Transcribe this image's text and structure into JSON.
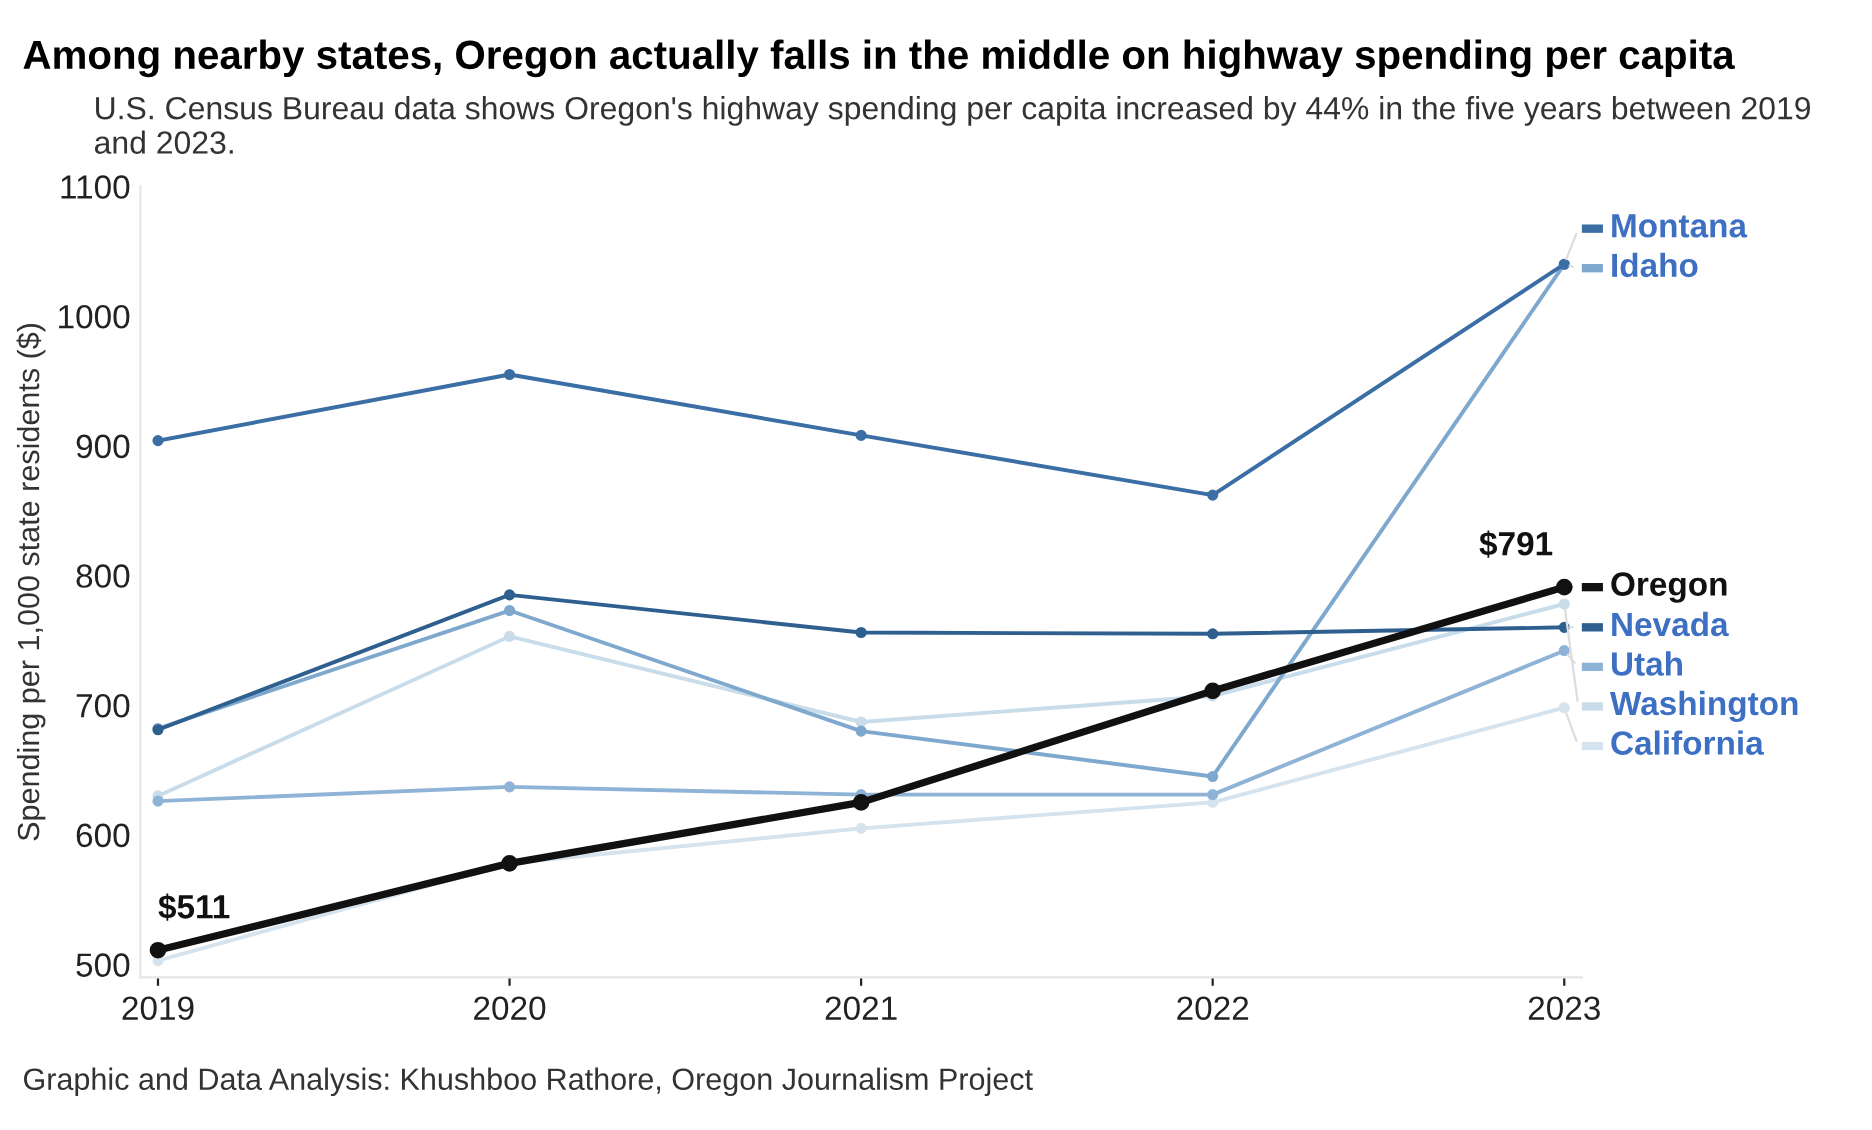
{
  "chart_data": {
    "type": "line",
    "title": "Among nearby states, Oregon actually falls in the middle on highway spending per capita",
    "subtitle": "U.S. Census Bureau data shows Oregon's highway spending per capita increased by 44% in the five years between 2019 and 2023.",
    "ylabel": "Spending per 1,000 state residents ($)",
    "annotations": [
      "Graphic and Data Analysis: Khushboo Rathore, Oregon Journalism Project"
    ],
    "categories": [
      "2019",
      "2020",
      "2021",
      "2022",
      "2023"
    ],
    "series": [
      {
        "name": "Montana",
        "color": "#3a6ea5",
        "values": [
          904,
          955,
          908,
          862,
          1040
        ]
      },
      {
        "name": "Idaho",
        "color": "#7fa8cf",
        "values": [
          682,
          773,
          680,
          645,
          1040
        ]
      },
      {
        "name": "Oregon",
        "color": "#111111",
        "values": [
          511,
          578,
          625,
          711,
          791
        ],
        "value_labels": [
          "$511",
          null,
          null,
          null,
          "$791"
        ]
      },
      {
        "name": "Nevada",
        "color": "#2e5f8f",
        "values": [
          681,
          785,
          756,
          755,
          760
        ]
      },
      {
        "name": "Utah",
        "color": "#8fb3d6",
        "values": [
          626,
          637,
          631,
          631,
          742
        ]
      },
      {
        "name": "Washington",
        "color": "#c8dcea",
        "values": [
          630,
          753,
          687,
          707,
          778
        ]
      },
      {
        "name": "California",
        "color": "#d5e3ee",
        "values": [
          503,
          578,
          605,
          625,
          698
        ]
      }
    ],
    "ylim": [
      490,
      1100
    ],
    "yticks": [
      500,
      600,
      700,
      800,
      900,
      1000,
      1100
    ],
    "marker": "circle",
    "line_style": "solid",
    "grid": false,
    "legend": "right"
  }
}
